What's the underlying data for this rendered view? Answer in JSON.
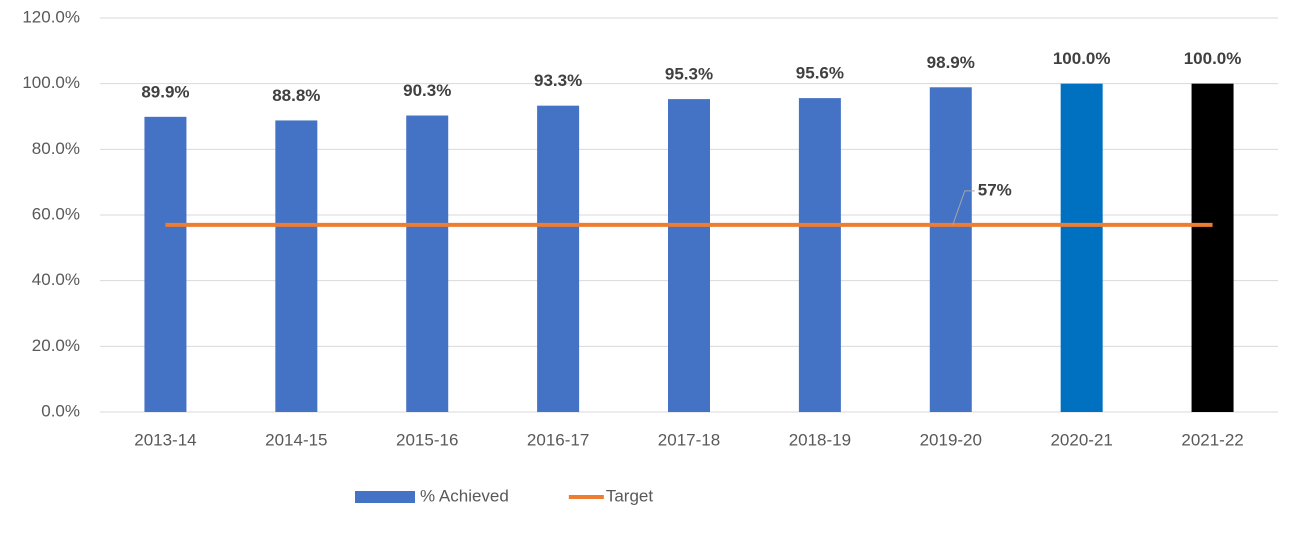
{
  "chart_data": {
    "type": "bar",
    "categories": [
      "2013-14",
      "2014-15",
      "2015-16",
      "2016-17",
      "2017-18",
      "2018-19",
      "2019-20",
      "2020-21",
      "2021-22"
    ],
    "series": [
      {
        "name": "% Achieved",
        "type": "bar",
        "color": "#4472c4",
        "colors": [
          "#4472c4",
          "#4472c4",
          "#4472c4",
          "#4472c4",
          "#4472c4",
          "#4472c4",
          "#4472c4",
          "#0070c0",
          "#000000"
        ],
        "values": [
          89.9,
          88.8,
          90.3,
          93.3,
          95.3,
          95.6,
          98.9,
          100,
          100
        ],
        "value_labels": [
          "89.9%",
          "88.8%",
          "90.3%",
          "93.3%",
          "95.3%",
          "95.6%",
          "98.9%",
          "100.0%",
          "100.0%"
        ]
      },
      {
        "name": "Target",
        "type": "line",
        "color": "#ed7d31",
        "values": [
          57,
          57,
          57,
          57,
          57,
          57,
          57,
          57,
          57
        ],
        "value_labels": [
          null,
          null,
          null,
          null,
          null,
          null,
          "57%",
          null,
          null
        ]
      }
    ],
    "ylim": [
      0,
      120
    ],
    "yticks": [
      {
        "value": 0,
        "label": "0.0%"
      },
      {
        "value": 20,
        "label": "20.0%"
      },
      {
        "value": 40,
        "label": "40.0%"
      },
      {
        "value": 60,
        "label": "60.0%"
      },
      {
        "value": 80,
        "label": "80.0%"
      },
      {
        "value": 100,
        "label": "100.0%"
      },
      {
        "value": 120,
        "label": "120.0%"
      }
    ],
    "grid": true,
    "legend": "bottom"
  }
}
